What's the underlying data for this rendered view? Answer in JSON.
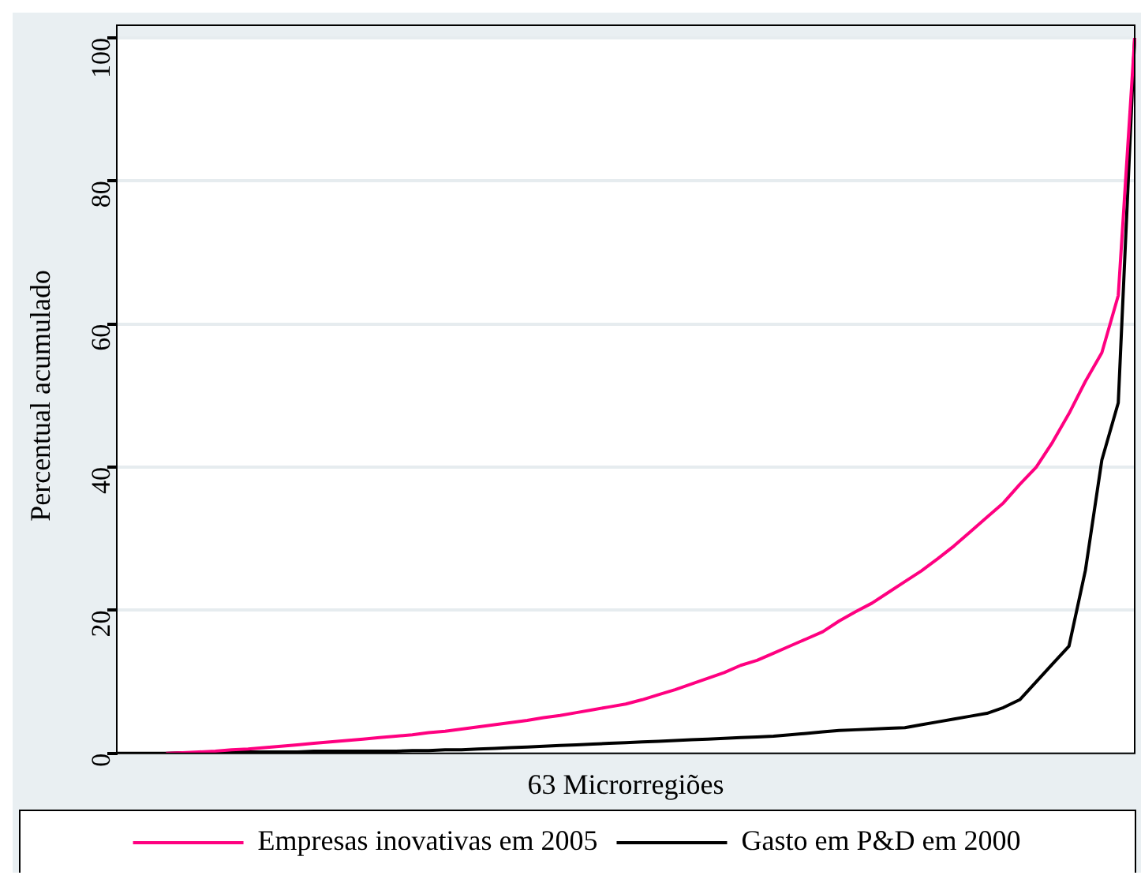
{
  "chart_data": {
    "type": "line",
    "xlabel": "63 Microrregiões",
    "ylabel": "Percentual acumulado",
    "categories": [
      null,
      null,
      null,
      null,
      null,
      null,
      null,
      null,
      null,
      null,
      null,
      null,
      null,
      null,
      null,
      null,
      null,
      null,
      null,
      null,
      null,
      null,
      null,
      null,
      null,
      null,
      null,
      null,
      null,
      null,
      null,
      null,
      null,
      null,
      null,
      null,
      null,
      null,
      null,
      null,
      null,
      null,
      null,
      null,
      null,
      null,
      null,
      null,
      null,
      null,
      null,
      null,
      null,
      null,
      null,
      null,
      null,
      null,
      null,
      null,
      null,
      null,
      null
    ],
    "series": [
      {
        "name": "Empresas inovativas em 2005",
        "color": "#ff0080",
        "values": [
          null,
          null,
          null,
          0,
          0.1,
          0.2,
          0.3,
          0.5,
          0.6,
          0.8,
          1.0,
          1.2,
          1.4,
          1.6,
          1.8,
          2.0,
          2.2,
          2.4,
          2.6,
          2.9,
          3.1,
          3.4,
          3.7,
          4.0,
          4.3,
          4.6,
          5.0,
          5.3,
          5.7,
          6.1,
          6.5,
          6.9,
          7.5,
          8.2,
          8.9,
          9.7,
          10.5,
          11.3,
          12.3,
          13.0,
          14.0,
          15.0,
          16.0,
          17.0,
          18.5,
          19.8,
          21.0,
          22.5,
          24.0,
          25.5,
          27.2,
          29.0,
          31.0,
          33.0,
          35.0,
          37.6,
          40.0,
          43.5,
          47.5,
          52,
          56,
          64,
          100
        ]
      },
      {
        "name": "Gasto em P&D em 2000",
        "color": "#000000",
        "values": [
          0,
          0,
          0,
          0,
          0.1,
          0.1,
          0.1,
          0.2,
          0.2,
          0.2,
          0.2,
          0.2,
          0.3,
          0.3,
          0.3,
          0.3,
          0.3,
          0.3,
          0.4,
          0.4,
          0.5,
          0.5,
          0.6,
          0.7,
          0.8,
          0.9,
          1.0,
          1.1,
          1.2,
          1.3,
          1.4,
          1.5,
          1.6,
          1.7,
          1.8,
          1.9,
          2.0,
          2.1,
          2.2,
          2.3,
          2.4,
          2.6,
          2.8,
          3.0,
          3.2,
          3.3,
          3.4,
          3.5,
          3.6,
          4.0,
          4.4,
          4.8,
          5.2,
          5.6,
          6.4,
          7.5,
          10,
          12.5,
          15,
          25.6,
          41,
          49,
          100
        ]
      }
    ],
    "ylim": [
      0,
      100
    ],
    "yticks": [
      0,
      20,
      40,
      60,
      80,
      100
    ],
    "grid": "y",
    "legend": "bottom",
    "marker": "none",
    "line_style": "solid",
    "tick_labels": "y"
  }
}
